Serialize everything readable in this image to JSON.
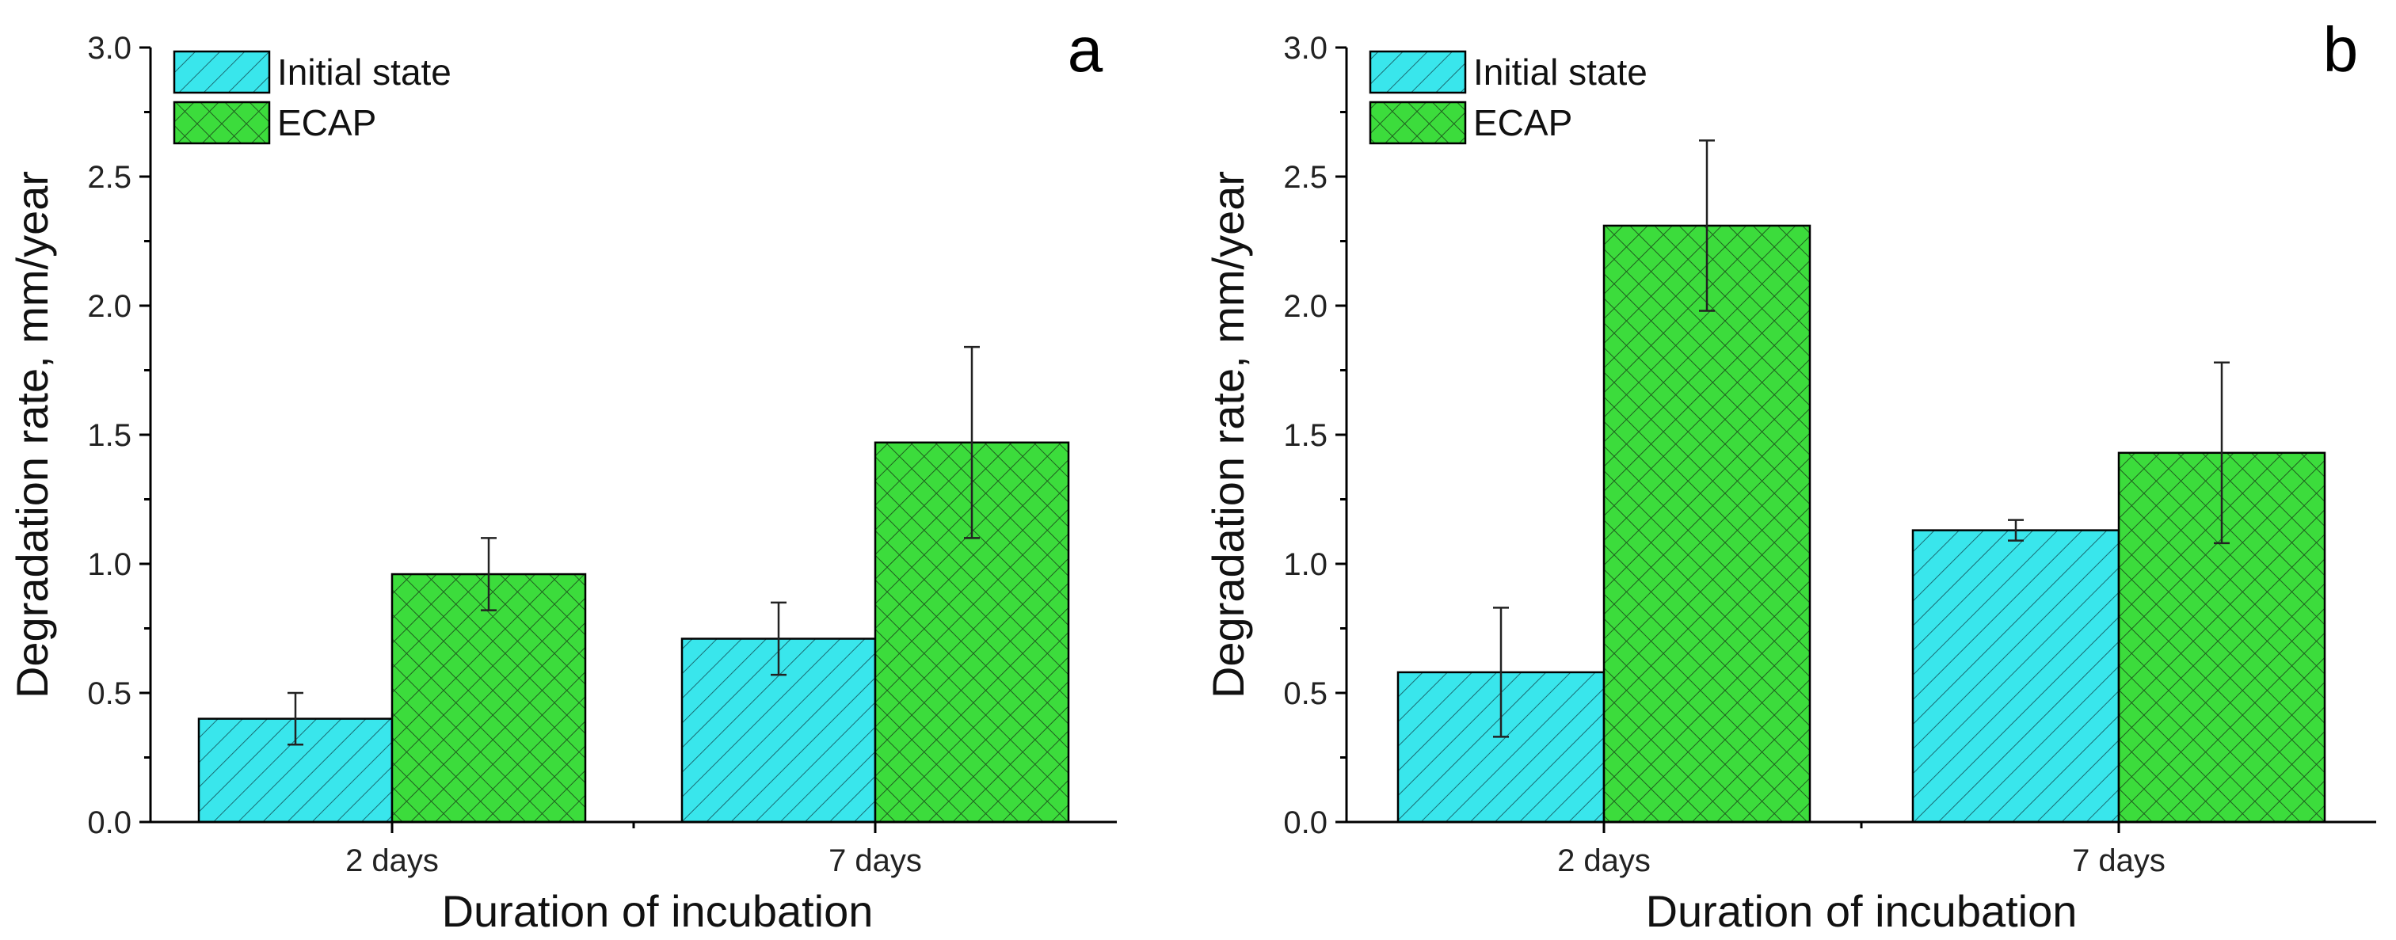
{
  "colors": {
    "initial_fill": "#39E6EC",
    "initial_hatch": "#1A6C74",
    "ecap_fill": "#3CDC3C",
    "ecap_hatch": "#1F5F1F"
  },
  "chart_data": [
    {
      "type": "bar",
      "panel_label": "a",
      "categories": [
        "2 days",
        "7 days"
      ],
      "xlabel": "Duration of incubation",
      "ylabel": "Degradation rate, mm/year",
      "ylim": [
        0,
        3.0
      ],
      "yticks": [
        "0.0",
        "0.5",
        "1.0",
        "1.5",
        "2.0",
        "2.5",
        "3.0"
      ],
      "legend_position": "top-left",
      "series": [
        {
          "name": "Initial state",
          "values": [
            0.4,
            0.71
          ],
          "errors": [
            0.1,
            0.14
          ]
        },
        {
          "name": "ECAP",
          "values": [
            0.96,
            1.47
          ],
          "errors": [
            0.14,
            0.37
          ]
        }
      ]
    },
    {
      "type": "bar",
      "panel_label": "b",
      "categories": [
        "2 days",
        "7 days"
      ],
      "xlabel": "Duration of incubation",
      "ylabel": "Degradation rate, mm/year",
      "ylim": [
        0,
        3.0
      ],
      "yticks": [
        "0.0",
        "0.5",
        "1.0",
        "1.5",
        "2.0",
        "2.5",
        "3.0"
      ],
      "legend_position": "top-left",
      "series": [
        {
          "name": "Initial state",
          "values": [
            0.58,
            1.13
          ],
          "errors": [
            0.25,
            0.04
          ]
        },
        {
          "name": "ECAP",
          "values": [
            2.31,
            1.43
          ],
          "errors": [
            0.33,
            0.35
          ]
        }
      ]
    }
  ]
}
